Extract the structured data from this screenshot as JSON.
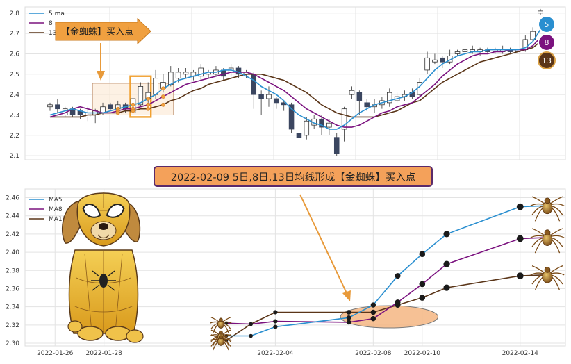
{
  "chart_data": [
    {
      "type": "candlestick",
      "ylim": [
        2.08,
        2.83
      ],
      "yticks": [
        "2.1",
        "2.2",
        "2.3",
        "2.4",
        "2.5",
        "2.6",
        "2.7",
        "2.8"
      ],
      "legend": {
        "placement": "top-left",
        "entries": [
          "5 ma",
          "8 ma",
          "13 ma"
        ]
      },
      "grid": true,
      "series_colors": {
        "ma5": "#2a8fd0",
        "ma8": "#7b127f",
        "ma13": "#5a3518",
        "candle_down": "#3b4660",
        "candle_up": "#ffffff"
      },
      "candles": [
        [
          2.34,
          2.35,
          2.36,
          2.32
        ],
        [
          2.35,
          2.33,
          2.38,
          2.31
        ],
        [
          2.3,
          2.33,
          2.34,
          2.29
        ],
        [
          2.33,
          2.3,
          2.34,
          2.29
        ],
        [
          2.32,
          2.3,
          2.33,
          2.28
        ],
        [
          2.29,
          2.31,
          2.34,
          2.27
        ],
        [
          2.3,
          2.32,
          2.33,
          2.26
        ],
        [
          2.31,
          2.34,
          2.36,
          2.3
        ],
        [
          2.35,
          2.33,
          2.36,
          2.32
        ],
        [
          2.33,
          2.35,
          2.37,
          2.32
        ],
        [
          2.35,
          2.33,
          2.36,
          2.31
        ],
        [
          2.31,
          2.38,
          2.4,
          2.3
        ],
        [
          2.35,
          2.44,
          2.46,
          2.34
        ],
        [
          2.38,
          2.41,
          2.46,
          2.36
        ],
        [
          2.4,
          2.48,
          2.52,
          2.38
        ],
        [
          2.43,
          2.46,
          2.5,
          2.41
        ],
        [
          2.45,
          2.51,
          2.54,
          2.44
        ],
        [
          2.48,
          2.51,
          2.53,
          2.46
        ],
        [
          2.5,
          2.51,
          2.53,
          2.48
        ],
        [
          2.49,
          2.51,
          2.52,
          2.47
        ],
        [
          2.49,
          2.53,
          2.55,
          2.47
        ],
        [
          2.5,
          2.51,
          2.52,
          2.48
        ],
        [
          2.5,
          2.52,
          2.54,
          2.49
        ],
        [
          2.52,
          2.49,
          2.53,
          2.47
        ],
        [
          2.51,
          2.53,
          2.55,
          2.49
        ],
        [
          2.53,
          2.5,
          2.54,
          2.48
        ],
        [
          2.5,
          2.51,
          2.52,
          2.48
        ],
        [
          2.5,
          2.4,
          2.51,
          2.33
        ],
        [
          2.4,
          2.38,
          2.42,
          2.3
        ],
        [
          2.38,
          2.4,
          2.44,
          2.34
        ],
        [
          2.38,
          2.36,
          2.39,
          2.33
        ],
        [
          2.36,
          2.35,
          2.37,
          2.32
        ],
        [
          2.35,
          2.23,
          2.36,
          2.21
        ],
        [
          2.21,
          2.19,
          2.22,
          2.17
        ],
        [
          2.2,
          2.27,
          2.29,
          2.18
        ],
        [
          2.25,
          2.28,
          2.3,
          2.23
        ],
        [
          2.28,
          2.24,
          2.3,
          2.2
        ],
        [
          2.24,
          2.26,
          2.28,
          2.2
        ],
        [
          2.19,
          2.11,
          2.21,
          2.1
        ],
        [
          2.23,
          2.33,
          2.34,
          2.17
        ],
        [
          2.4,
          2.42,
          2.44,
          2.38
        ],
        [
          2.41,
          2.37,
          2.42,
          2.3
        ],
        [
          2.36,
          2.34,
          2.38,
          2.32
        ],
        [
          2.34,
          2.35,
          2.38,
          2.31
        ],
        [
          2.35,
          2.37,
          2.39,
          2.33
        ],
        [
          2.36,
          2.41,
          2.43,
          2.34
        ],
        [
          2.37,
          2.39,
          2.41,
          2.36
        ],
        [
          2.39,
          2.4,
          2.42,
          2.37
        ],
        [
          2.41,
          2.39,
          2.43,
          2.38
        ],
        [
          2.4,
          2.46,
          2.48,
          2.39
        ],
        [
          2.52,
          2.58,
          2.61,
          2.5
        ],
        [
          2.56,
          2.57,
          2.6,
          2.55
        ],
        [
          2.58,
          2.56,
          2.59,
          2.53
        ],
        [
          2.56,
          2.59,
          2.62,
          2.55
        ],
        [
          2.6,
          2.61,
          2.62,
          2.59
        ],
        [
          2.61,
          2.62,
          2.63,
          2.6
        ],
        [
          2.61,
          2.62,
          2.64,
          2.6
        ],
        [
          2.61,
          2.62,
          2.63,
          2.59
        ],
        [
          2.62,
          2.61,
          2.63,
          2.6
        ],
        [
          2.61,
          2.62,
          2.63,
          2.6
        ],
        [
          2.61,
          2.62,
          2.64,
          2.6
        ],
        [
          2.62,
          2.61,
          2.63,
          2.6
        ],
        [
          2.61,
          2.62,
          2.64,
          2.59
        ],
        [
          2.62,
          2.67,
          2.69,
          2.61
        ],
        [
          2.67,
          2.71,
          2.73,
          2.66
        ],
        [
          2.8,
          2.81,
          2.82,
          2.79
        ]
      ],
      "ma5": [
        2.3,
        2.31,
        2.32,
        2.33,
        2.32,
        2.31,
        2.31,
        2.31,
        2.32,
        2.33,
        2.34,
        2.35,
        2.36,
        2.38,
        2.4,
        2.43,
        2.45,
        2.47,
        2.48,
        2.49,
        2.5,
        2.51,
        2.51,
        2.52,
        2.52,
        2.51,
        2.49,
        2.47,
        2.44,
        2.42,
        2.4,
        2.37,
        2.33,
        2.3,
        2.28,
        2.26,
        2.25,
        2.23,
        2.23,
        2.25,
        2.28,
        2.31,
        2.33,
        2.35,
        2.36,
        2.37,
        2.38,
        2.39,
        2.41,
        2.44,
        2.48,
        2.52,
        2.55,
        2.57,
        2.59,
        2.6,
        2.61,
        2.61,
        2.62,
        2.62,
        2.62,
        2.62,
        2.62,
        2.63,
        2.66,
        2.72
      ],
      "ma8": [
        2.29,
        2.3,
        2.31,
        2.33,
        2.34,
        2.33,
        2.32,
        2.31,
        2.31,
        2.32,
        2.33,
        2.33,
        2.34,
        2.35,
        2.37,
        2.39,
        2.41,
        2.43,
        2.45,
        2.46,
        2.47,
        2.48,
        2.49,
        2.5,
        2.51,
        2.51,
        2.51,
        2.5,
        2.48,
        2.46,
        2.44,
        2.42,
        2.39,
        2.36,
        2.33,
        2.31,
        2.29,
        2.27,
        2.25,
        2.24,
        2.24,
        2.25,
        2.27,
        2.29,
        2.31,
        2.32,
        2.34,
        2.35,
        2.36,
        2.39,
        2.42,
        2.45,
        2.49,
        2.52,
        2.55,
        2.57,
        2.59,
        2.6,
        2.6,
        2.61,
        2.61,
        2.62,
        2.62,
        2.62,
        2.64,
        2.68
      ],
      "ma13": [
        2.29,
        2.29,
        2.29,
        2.29,
        2.29,
        2.3,
        2.3,
        2.31,
        2.31,
        2.31,
        2.32,
        2.32,
        2.33,
        2.33,
        2.34,
        2.35,
        2.37,
        2.38,
        2.4,
        2.42,
        2.43,
        2.45,
        2.46,
        2.47,
        2.48,
        2.49,
        2.5,
        2.5,
        2.5,
        2.49,
        2.48,
        2.47,
        2.45,
        2.43,
        2.41,
        2.38,
        2.35,
        2.33,
        2.31,
        2.3,
        2.29,
        2.29,
        2.29,
        2.29,
        2.3,
        2.31,
        2.32,
        2.34,
        2.36,
        2.37,
        2.4,
        2.43,
        2.46,
        2.48,
        2.5,
        2.52,
        2.54,
        2.56,
        2.57,
        2.58,
        2.59,
        2.6,
        2.61,
        2.62,
        2.63,
        2.66
      ],
      "signal_box_index": [
        6,
        16
      ],
      "signal_highlight_index": [
        11,
        13
      ],
      "signal_label": "【金蜘蛛】买入点",
      "badges": [
        "5",
        "8",
        "13"
      ]
    },
    {
      "type": "line",
      "x": [
        "2022-02-02",
        "2022-02-03",
        "2022-02-04",
        "2022-02-07",
        "2022-02-08",
        "2022-02-09",
        "2022-02-10",
        "2022-02-11",
        "2022-02-14",
        "2022-02-15"
      ],
      "xlim": [
        "2022-01-25",
        "2022-02-15"
      ],
      "xticks": [
        "2022-01-26",
        "2022-01-28",
        "2022-02-04",
        "2022-02-08",
        "2022-02-10",
        "2022-02-14"
      ],
      "ylim": [
        2.3,
        2.465
      ],
      "yticks": [
        "2.30",
        "2.32",
        "2.34",
        "2.36",
        "2.38",
        "2.40",
        "2.42",
        "2.44",
        "2.46"
      ],
      "grid": true,
      "legend": {
        "placement": "top-left"
      },
      "series": [
        {
          "name": "MA5",
          "color": "#2a8fd0",
          "values": [
            2.308,
            2.308,
            2.318,
            2.328,
            2.342,
            2.374,
            2.398,
            2.42,
            2.45,
            2.451
          ]
        },
        {
          "name": "MA8",
          "color": "#7b127f",
          "values": [
            2.322,
            2.321,
            2.324,
            2.323,
            2.327,
            2.345,
            2.365,
            2.387,
            2.415,
            2.416
          ]
        },
        {
          "name": "MA13",
          "color": "#5a3518",
          "values": [
            2.303,
            2.321,
            2.334,
            2.334,
            2.334,
            2.342,
            2.35,
            2.361,
            2.374,
            2.375
          ]
        }
      ],
      "highlight_index": [
        3,
        5
      ],
      "annotation": "2022-02-09 5日,8日,13日均线形成【金蜘蛛】买入点"
    }
  ]
}
